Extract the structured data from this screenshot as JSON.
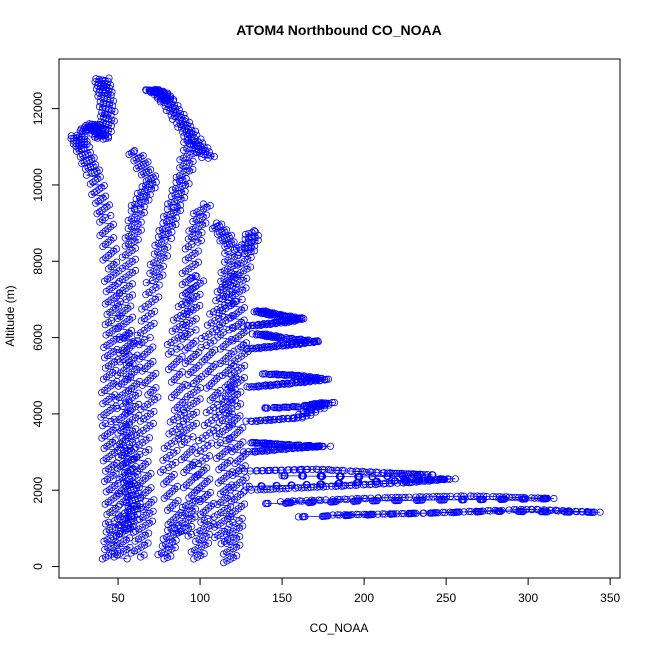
{
  "chart_data": {
    "type": "scatter",
    "title": "ATOM4 Northbound CO_NOAA",
    "xlabel": "CO_NOAA",
    "ylabel": "Altitude (m)",
    "xlim": [
      14,
      356
    ],
    "ylim": [
      -300,
      13300
    ],
    "x_ticks": [
      50,
      100,
      150,
      200,
      250,
      300,
      350
    ],
    "y_ticks": [
      0,
      2000,
      4000,
      6000,
      8000,
      10000,
      12000
    ],
    "x_tick_labels": [
      "50",
      "100",
      "150",
      "200",
      "250",
      "300",
      "350"
    ],
    "y_tick_labels": [
      "0",
      "2000",
      "4000",
      "6000",
      "8000",
      "10000",
      "12000"
    ],
    "series_color": "#0000ff",
    "marker": "open-circle",
    "connected_by_lines": true,
    "background": "#ffffff",
    "series": [
      {
        "profiles": [
          [
            [
              45,
              200
            ],
            [
              47,
              1200
            ],
            [
              46,
              2500
            ],
            [
              44,
              3800
            ],
            [
              45,
              5200
            ],
            [
              47,
              6500
            ],
            [
              46,
              7800
            ],
            [
              42,
              9200
            ],
            [
              35,
              10300
            ],
            [
              28,
              11000
            ],
            [
              25,
              11300
            ]
          ],
          [
            [
              52,
              200
            ],
            [
              55,
              1400
            ],
            [
              54,
              2800
            ],
            [
              53,
              4200
            ],
            [
              55,
              5600
            ],
            [
              54,
              7000
            ],
            [
              58,
              8400
            ],
            [
              62,
              9400
            ],
            [
              70,
              10100
            ],
            [
              60,
              10900
            ]
          ],
          [
            [
              62,
              250
            ],
            [
              68,
              1500
            ],
            [
              64,
              3000
            ],
            [
              70,
              4500
            ],
            [
              66,
              6000
            ],
            [
              72,
              7500
            ],
            [
              78,
              8600
            ],
            [
              84,
              9400
            ],
            [
              90,
              10200
            ],
            [
              95,
              11200
            ]
          ],
          [
            [
              78,
              200
            ],
            [
              85,
              1100
            ],
            [
              80,
              2600
            ],
            [
              88,
              4100
            ],
            [
              84,
              5700
            ],
            [
              92,
              7100
            ],
            [
              96,
              8500
            ],
            [
              102,
              9500
            ]
          ],
          [
            [
              98,
              200
            ],
            [
              105,
              1300
            ],
            [
              100,
              2700
            ],
            [
              110,
              4300
            ],
            [
              104,
              5800
            ],
            [
              115,
              7200
            ],
            [
              120,
              8300
            ],
            [
              110,
              9000
            ]
          ],
          [
            [
              118,
              100
            ],
            [
              122,
              1200
            ],
            [
              124,
              2700
            ],
            [
              120,
              4200
            ],
            [
              125,
              5700
            ],
            [
              122,
              7000
            ],
            [
              128,
              8200
            ],
            [
              133,
              8800
            ]
          ],
          [
            [
              40,
              12800
            ],
            [
              42,
              12400
            ],
            [
              44,
              11800
            ],
            [
              40,
              11200
            ],
            [
              36,
              11600
            ],
            [
              30,
              11400
            ]
          ],
          [
            [
              70,
              12500
            ],
            [
              76,
              12400
            ],
            [
              80,
              12200
            ],
            [
              88,
              11700
            ],
            [
              96,
              11200
            ],
            [
              105,
              10700
            ]
          ],
          [
            [
              180,
              1350
            ],
            [
              240,
              1400
            ],
            [
              300,
              1500
            ],
            [
              342,
              1420
            ],
            [
              280,
              1450
            ],
            [
              220,
              1380
            ],
            [
              160,
              1300
            ]
          ],
          [
            [
              150,
              1700
            ],
            [
              210,
              1800
            ],
            [
              265,
              1850
            ],
            [
              316,
              1780
            ],
            [
              260,
              1750
            ],
            [
              200,
              1720
            ],
            [
              140,
              1650
            ]
          ],
          [
            [
              130,
              2000
            ],
            [
              180,
              2100
            ],
            [
              225,
              2200
            ],
            [
              252,
              2300
            ],
            [
              220,
              2250
            ],
            [
              170,
              2150
            ],
            [
              130,
              2100
            ]
          ],
          [
            [
              128,
              2500
            ],
            [
              170,
              2550
            ],
            [
              215,
              2450
            ],
            [
              240,
              2400
            ],
            [
              200,
              2350
            ],
            [
              150,
              2380
            ]
          ],
          [
            [
              130,
              3000
            ],
            [
              155,
              3100
            ],
            [
              175,
              3150
            ],
            [
              148,
              3200
            ],
            [
              132,
              3250
            ]
          ],
          [
            [
              130,
              3800
            ],
            [
              160,
              3900
            ],
            [
              178,
              4300
            ],
            [
              165,
              4200
            ],
            [
              140,
              4150
            ]
          ],
          [
            [
              130,
              4700
            ],
            [
              155,
              4800
            ],
            [
              175,
              4900
            ],
            [
              160,
              5000
            ],
            [
              140,
              5050
            ]
          ],
          [
            [
              130,
              5700
            ],
            [
              152,
              5800
            ],
            [
              170,
              5900
            ],
            [
              148,
              6000
            ],
            [
              135,
              6100
            ]
          ],
          [
            [
              130,
              6300
            ],
            [
              150,
              6400
            ],
            [
              160,
              6500
            ],
            [
              145,
              6600
            ],
            [
              135,
              6700
            ]
          ],
          [
            [
              55,
              900
            ],
            [
              60,
              1600
            ],
            [
              58,
              2200
            ],
            [
              56,
              3200
            ],
            [
              60,
              4600
            ],
            [
              57,
              6100
            ]
          ],
          [
            [
              90,
              800
            ],
            [
              95,
              1800
            ],
            [
              92,
              3400
            ],
            [
              97,
              4800
            ],
            [
              93,
              6200
            ],
            [
              98,
              7600
            ]
          ],
          [
            [
              112,
              600
            ],
            [
              116,
              1900
            ],
            [
              114,
              3300
            ],
            [
              118,
              4700
            ],
            [
              115,
              6200
            ],
            [
              119,
              7700
            ]
          ]
        ]
      }
    ]
  }
}
